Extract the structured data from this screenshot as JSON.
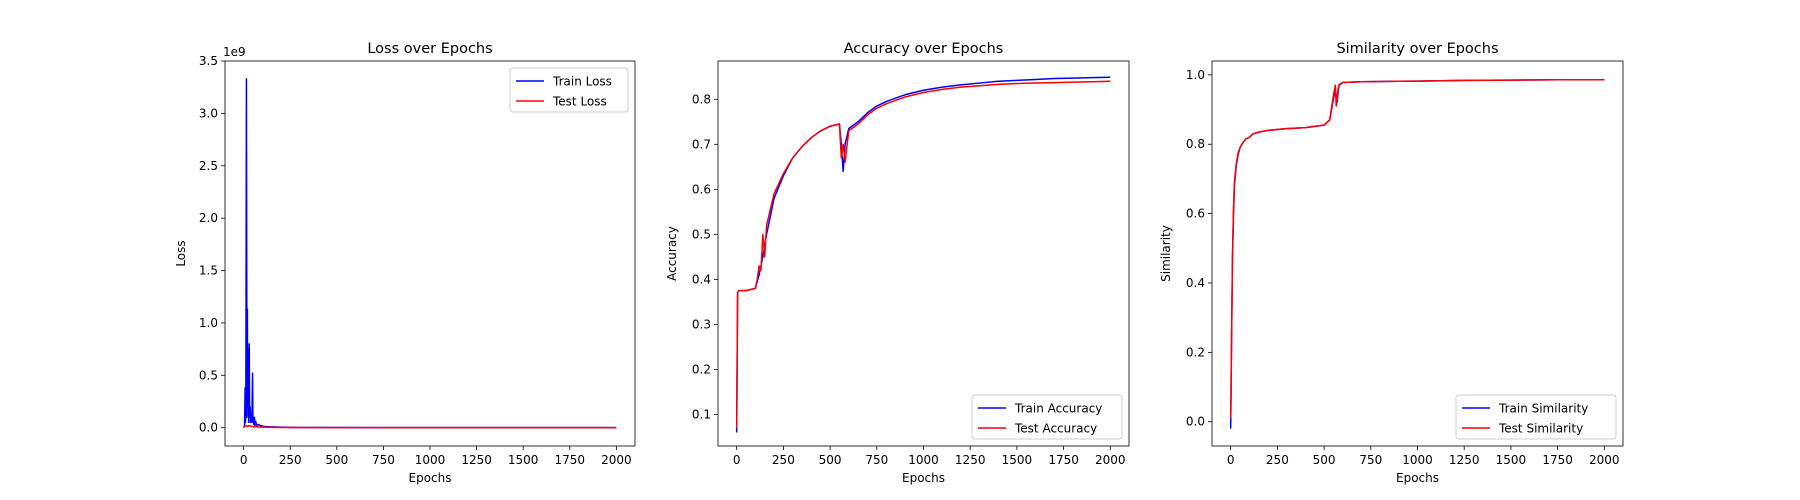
{
  "figure": {
    "background": "#ffffff",
    "series_colors": {
      "train": "#0000ff",
      "test": "#ff0000"
    }
  },
  "chart_data": [
    {
      "type": "line",
      "title": "Loss over Epochs",
      "xlabel": "Epochs",
      "ylabel": "Loss",
      "offset_text": "1e9",
      "xlim": [
        -100,
        2100
      ],
      "ylim": [
        -0.175,
        3.5
      ],
      "xticks": [
        0,
        250,
        500,
        750,
        1000,
        1250,
        1500,
        1750,
        2000
      ],
      "yticks": [
        0.0,
        0.5,
        1.0,
        1.5,
        2.0,
        2.5,
        3.0,
        3.5
      ],
      "ytick_labels": [
        "0.0",
        "0.5",
        "1.0",
        "1.5",
        "2.0",
        "2.5",
        "3.0",
        "3.5"
      ],
      "legend": "upper right",
      "grid": false,
      "series": [
        {
          "name": "Train Loss",
          "color": "#0000ff",
          "x": [
            0,
            5,
            8,
            10,
            12,
            15,
            18,
            20,
            22,
            25,
            27,
            30,
            32,
            35,
            37,
            40,
            42,
            45,
            48,
            50,
            52,
            55,
            58,
            60,
            65,
            70,
            80,
            90,
            100,
            120,
            150,
            200,
            250,
            300,
            400,
            500,
            750,
            1000,
            1250,
            1500,
            1750,
            2000
          ],
          "y": [
            0.0,
            0.02,
            0.38,
            0.05,
            0.3,
            3.33,
            0.1,
            1.13,
            0.2,
            0.75,
            0.05,
            0.8,
            0.1,
            0.2,
            0.05,
            0.12,
            0.05,
            0.15,
            0.52,
            0.05,
            0.08,
            0.03,
            0.1,
            0.02,
            0.06,
            0.02,
            0.03,
            0.02,
            0.015,
            0.01,
            0.008,
            0.005,
            0.003,
            0.002,
            0.001,
            0.001,
            0.0,
            0.0,
            0.0,
            0.0,
            0.0,
            0.0
          ]
        },
        {
          "name": "Test Loss",
          "color": "#ff0000",
          "x": [
            0,
            10,
            20,
            30,
            50,
            100,
            200,
            500,
            1000,
            1500,
            2000
          ],
          "y": [
            0.0,
            0.02,
            0.01,
            0.02,
            0.01,
            0.005,
            0.002,
            0.0,
            0.0,
            0.0,
            0.0
          ]
        }
      ]
    },
    {
      "type": "line",
      "title": "Accuracy over Epochs",
      "xlabel": "Epochs",
      "ylabel": "Accuracy",
      "xlim": [
        -100,
        2100
      ],
      "ylim": [
        0.03,
        0.885
      ],
      "xticks": [
        0,
        250,
        500,
        750,
        1000,
        1250,
        1500,
        1750,
        2000
      ],
      "yticks": [
        0.1,
        0.2,
        0.3,
        0.4,
        0.5,
        0.6,
        0.7,
        0.8
      ],
      "ytick_labels": [
        "0.1",
        "0.2",
        "0.3",
        "0.4",
        "0.5",
        "0.6",
        "0.7",
        "0.8"
      ],
      "legend": "lower right",
      "grid": false,
      "series": [
        {
          "name": "Train Accuracy",
          "color": "#0000ff",
          "x": [
            0,
            5,
            10,
            50,
            100,
            120,
            140,
            160,
            200,
            250,
            300,
            350,
            400,
            450,
            500,
            550,
            560,
            570,
            580,
            600,
            650,
            700,
            750,
            800,
            900,
            1000,
            1100,
            1200,
            1300,
            1400,
            1500,
            1600,
            1700,
            1800,
            1900,
            2000
          ],
          "y": [
            0.06,
            0.37,
            0.375,
            0.375,
            0.38,
            0.41,
            0.45,
            0.5,
            0.58,
            0.63,
            0.67,
            0.695,
            0.715,
            0.73,
            0.74,
            0.745,
            0.7,
            0.64,
            0.7,
            0.735,
            0.75,
            0.77,
            0.785,
            0.795,
            0.81,
            0.82,
            0.827,
            0.832,
            0.836,
            0.84,
            0.842,
            0.844,
            0.846,
            0.847,
            0.848,
            0.849
          ]
        },
        {
          "name": "Test Accuracy",
          "color": "#ff0000",
          "x": [
            0,
            5,
            10,
            50,
            100,
            110,
            120,
            130,
            140,
            150,
            160,
            200,
            250,
            300,
            350,
            400,
            450,
            500,
            550,
            560,
            570,
            580,
            600,
            650,
            700,
            750,
            800,
            900,
            1000,
            1100,
            1200,
            1300,
            1400,
            1500,
            1600,
            1700,
            1800,
            1900,
            2000
          ],
          "y": [
            0.07,
            0.37,
            0.375,
            0.375,
            0.38,
            0.4,
            0.43,
            0.42,
            0.5,
            0.45,
            0.52,
            0.59,
            0.635,
            0.67,
            0.695,
            0.715,
            0.73,
            0.74,
            0.745,
            0.67,
            0.7,
            0.66,
            0.73,
            0.745,
            0.765,
            0.78,
            0.79,
            0.805,
            0.815,
            0.822,
            0.827,
            0.83,
            0.833,
            0.835,
            0.836,
            0.837,
            0.838,
            0.839,
            0.84
          ]
        }
      ]
    },
    {
      "type": "line",
      "title": "Similarity over Epochs",
      "xlabel": "Epochs",
      "ylabel": "Similarity",
      "xlim": [
        -100,
        2100
      ],
      "ylim": [
        -0.07,
        1.04
      ],
      "xticks": [
        0,
        250,
        500,
        750,
        1000,
        1250,
        1500,
        1750,
        2000
      ],
      "yticks": [
        0.0,
        0.2,
        0.4,
        0.6,
        0.8,
        1.0
      ],
      "ytick_labels": [
        "0.0",
        "0.2",
        "0.4",
        "0.6",
        "0.8",
        "1.0"
      ],
      "legend": "lower right",
      "grid": false,
      "series": [
        {
          "name": "Train Similarity",
          "color": "#0000ff",
          "x": [
            0,
            5,
            10,
            15,
            20,
            30,
            40,
            50,
            60,
            80,
            100,
            120,
            150,
            200,
            300,
            400,
            500,
            530,
            550,
            560,
            570,
            575,
            580,
            600,
            700,
            800,
            1000,
            1250,
            1500,
            1750,
            2000
          ],
          "y": [
            -0.02,
            0.25,
            0.48,
            0.6,
            0.68,
            0.74,
            0.77,
            0.79,
            0.8,
            0.815,
            0.82,
            0.83,
            0.835,
            0.84,
            0.845,
            0.848,
            0.855,
            0.87,
            0.93,
            0.96,
            0.92,
            0.95,
            0.97,
            0.978,
            0.98,
            0.981,
            0.982,
            0.984,
            0.985,
            0.986,
            0.986
          ]
        },
        {
          "name": "Test Similarity",
          "color": "#ff0000",
          "x": [
            0,
            5,
            10,
            15,
            20,
            30,
            40,
            50,
            60,
            80,
            100,
            120,
            150,
            200,
            300,
            400,
            500,
            530,
            550,
            560,
            565,
            570,
            575,
            580,
            600,
            700,
            800,
            1000,
            1250,
            1500,
            1750,
            2000
          ],
          "y": [
            0.01,
            0.26,
            0.49,
            0.61,
            0.69,
            0.745,
            0.775,
            0.79,
            0.8,
            0.815,
            0.82,
            0.83,
            0.835,
            0.84,
            0.845,
            0.848,
            0.855,
            0.87,
            0.94,
            0.97,
            0.91,
            0.93,
            0.96,
            0.972,
            0.978,
            0.98,
            0.981,
            0.982,
            0.984,
            0.985,
            0.986,
            0.986
          ]
        }
      ]
    }
  ]
}
